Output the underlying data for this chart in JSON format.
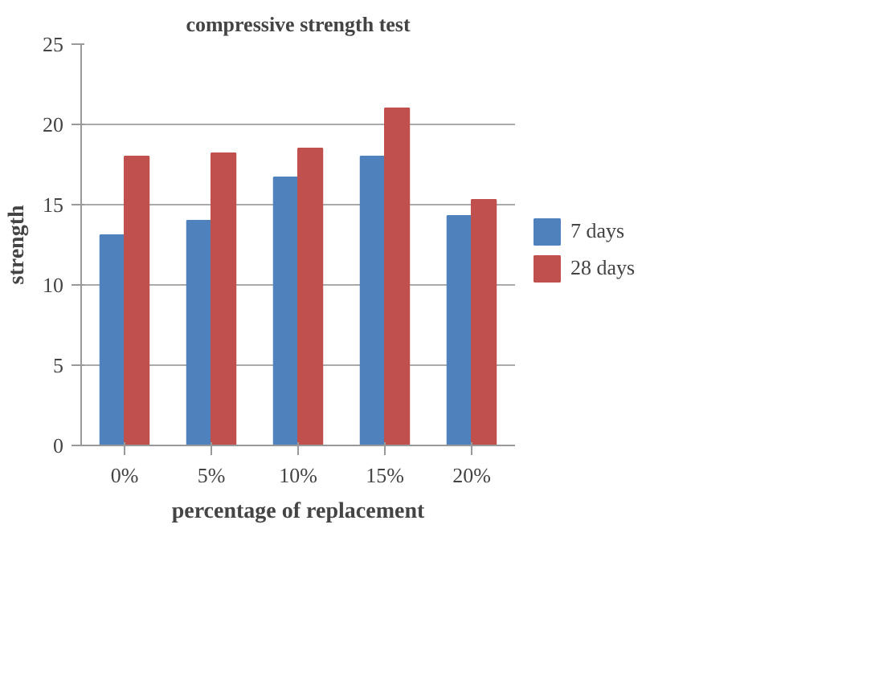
{
  "chart_data": {
    "type": "bar",
    "title": "compressive strength test",
    "xlabel": "percentage of replacement",
    "ylabel": "strength",
    "categories": [
      "0%",
      "5%",
      "10%",
      "15%",
      "20%"
    ],
    "series": [
      {
        "name": "7 days",
        "color": "#4f81bd",
        "values": [
          13.1,
          14,
          16.7,
          18,
          14.3
        ]
      },
      {
        "name": "28 days",
        "color": "#c0504d",
        "values": [
          18,
          18.2,
          18.5,
          21,
          15.3
        ]
      }
    ],
    "ylim": [
      0,
      25
    ],
    "yticks": [
      0,
      5,
      10,
      15,
      20,
      25
    ],
    "grid": "y",
    "legend": "right"
  }
}
